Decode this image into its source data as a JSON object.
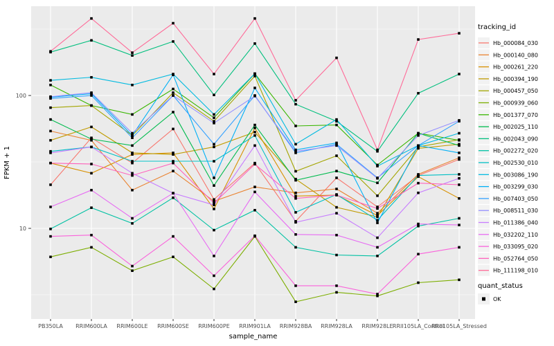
{
  "chart_data": {
    "type": "line",
    "title": "",
    "xlabel": "sample_name",
    "ylabel": "FPKM + 1",
    "y_scale": "log10",
    "y_ticks": [
      {
        "label": "100",
        "value": 100
      },
      {
        "label": "10",
        "value": 10
      }
    ],
    "grid": "on",
    "panel_bg": "#EBEBEB",
    "grid_color": "#FFFFFF",
    "marker_color": "#000000",
    "tick_label_color": "#4D4D4D",
    "axis_title_color": "#000000",
    "legend_title": "tracking_id",
    "legend_position": "right",
    "legend_key_bg": "#F2F2F2",
    "quant_legend": {
      "title": "quant_status",
      "items": [
        {
          "label": "OK",
          "marker": "black-square"
        }
      ]
    },
    "categories": [
      "PB350LA",
      "RRIM600LA",
      "RRIM600LE",
      "RRIM600SE",
      "RRIM600PE",
      "RRIM901LA",
      "RRIM928BA",
      "RRIM928LA",
      "RRIM928LE",
      "RRII105LA_Control",
      "RRII105LA_Stressed"
    ],
    "series": [
      {
        "name": "Hb_000084_030",
        "color": "#F8766D",
        "values": [
          21.3,
          48,
          31,
          56,
          16.5,
          31,
          11.3,
          24,
          14.5,
          25,
          33
        ]
      },
      {
        "name": "Hb_000140_080",
        "color": "#EA8331",
        "values": [
          54,
          46,
          19.4,
          27,
          16,
          20.5,
          18.5,
          19.8,
          13,
          25.5,
          34
        ]
      },
      {
        "name": "Hb_000261_220",
        "color": "#D89000",
        "values": [
          31,
          26,
          36,
          37,
          14,
          57,
          17.5,
          17.8,
          12.5,
          24.5,
          16.8
        ]
      },
      {
        "name": "Hb_000394_190",
        "color": "#C09B00",
        "values": [
          46,
          58,
          37,
          36,
          41,
          53,
          23.5,
          14.4,
          12.2,
          40,
          43
        ]
      },
      {
        "name": "Hb_000457_050",
        "color": "#A3A500",
        "values": [
          81,
          84,
          50,
          105,
          64,
          140,
          26.9,
          35.2,
          17.6,
          41,
          46.5
        ]
      },
      {
        "name": "Hb_000939_060",
        "color": "#7CAE00",
        "values": [
          6.1,
          7.2,
          4.8,
          6.1,
          3.5,
          8.7,
          2.8,
          3.3,
          3.1,
          3.9,
          4.1
        ]
      },
      {
        "name": "Hb_001377_070",
        "color": "#39B600",
        "values": [
          120,
          84,
          72,
          112,
          68,
          146,
          59,
          60,
          30,
          52,
          46
        ]
      },
      {
        "name": "Hb_002025_110",
        "color": "#00BB4E",
        "values": [
          66,
          47,
          42,
          75,
          21,
          60,
          23,
          27,
          22,
          52,
          42
        ]
      },
      {
        "name": "Hb_002043_090",
        "color": "#00BF7D",
        "values": [
          212,
          260,
          200,
          255,
          101,
          246,
          86,
          64,
          38,
          104,
          145
        ]
      },
      {
        "name": "Hb_002272_020",
        "color": "#00C1A3",
        "values": [
          9.9,
          14.3,
          10.9,
          17,
          9.7,
          13.7,
          7.2,
          6.3,
          6.2,
          10.4,
          11.9
        ]
      },
      {
        "name": "Hb_002530_010",
        "color": "#00BFC4",
        "values": [
          38,
          41,
          32,
          32,
          32,
          50,
          13.2,
          18,
          11.5,
          25,
          25.5
        ]
      },
      {
        "name": "Hb_003086_190",
        "color": "#00BAE0",
        "values": [
          130,
          137,
          120,
          145,
          72,
          146,
          43,
          66,
          29.4,
          42,
          52
        ]
      },
      {
        "name": "Hb_003299_030",
        "color": "#00B0F6",
        "values": [
          97,
          103,
          50,
          143,
          24,
          114,
          39,
          44,
          11,
          42,
          37
        ]
      },
      {
        "name": "Hb_007403_050",
        "color": "#35A2FF",
        "values": [
          95,
          100,
          48,
          100,
          43,
          100,
          37,
          43,
          24,
          42,
          64
        ]
      },
      {
        "name": "Hb_008511_030",
        "color": "#9590FF",
        "values": [
          98,
          105,
          52,
          100,
          62,
          99,
          38,
          42,
          23.8,
          50,
          65
        ]
      },
      {
        "name": "Hb_011386_040",
        "color": "#C77CFF",
        "values": [
          37,
          41,
          26,
          18.4,
          15,
          42,
          11.1,
          13,
          8.5,
          18.5,
          23.8
        ]
      },
      {
        "name": "Hb_032202_110",
        "color": "#E76BF3",
        "values": [
          14.5,
          19.4,
          11.9,
          18.4,
          6.2,
          18.8,
          9.0,
          8.9,
          7.2,
          10.8,
          10.6
        ]
      },
      {
        "name": "Hb_033095_020",
        "color": "#FA62DB",
        "values": [
          8.7,
          8.9,
          5.2,
          8.7,
          4.4,
          8.8,
          3.7,
          3.7,
          3.2,
          6.4,
          7.2
        ]
      },
      {
        "name": "Hb_052764_050",
        "color": "#FF62BC",
        "values": [
          31,
          30.5,
          25,
          31,
          15.5,
          30.4,
          16.8,
          17.8,
          14.1,
          21.9,
          21.3
        ]
      },
      {
        "name": "Hb_111198_010",
        "color": "#FF6A98",
        "values": [
          215,
          380,
          210,
          350,
          145,
          380,
          92,
          192,
          39,
          264,
          294
        ]
      }
    ]
  }
}
